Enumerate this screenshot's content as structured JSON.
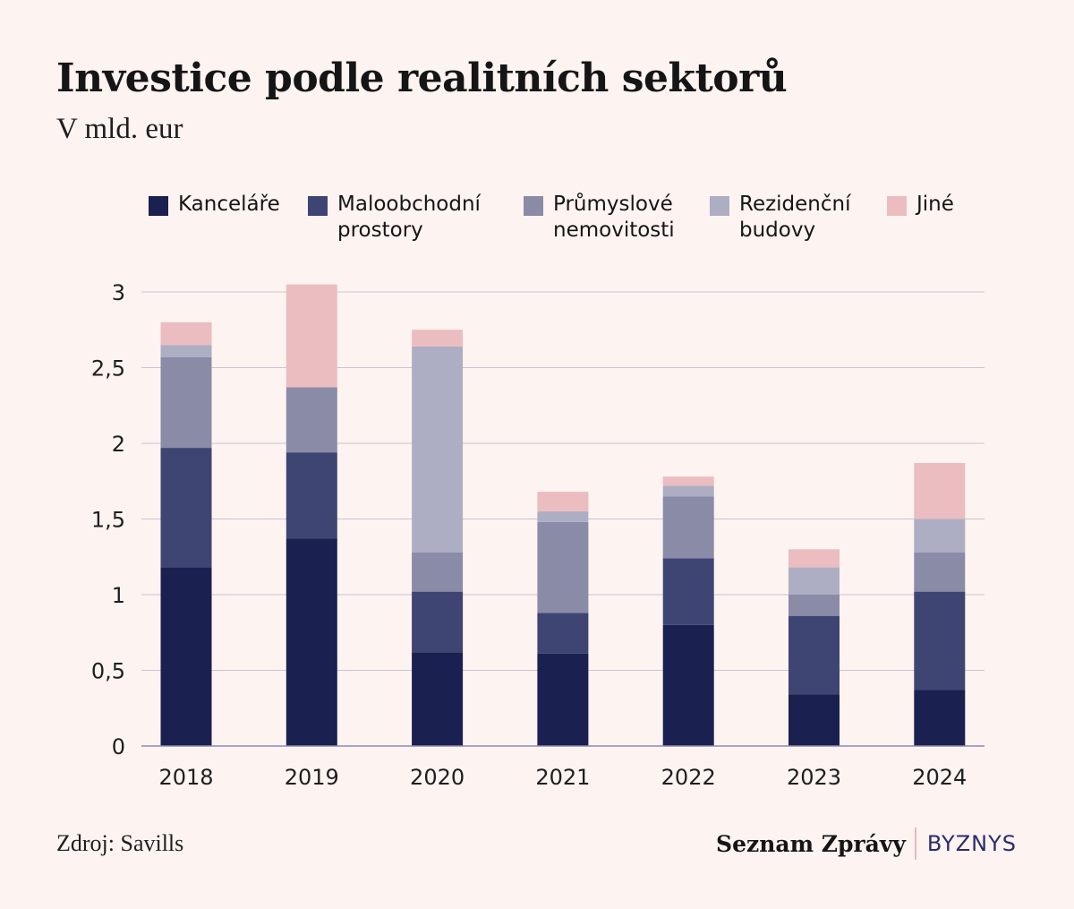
{
  "title": "Investice podle realitních sektorů",
  "subtitle": "V mld. eur",
  "legend": [
    {
      "lines": [
        "Kanceláře"
      ],
      "color": "#1a2150"
    },
    {
      "lines": [
        "Maloobchodní",
        "prostory"
      ],
      "color": "#3f4573"
    },
    {
      "lines": [
        "Průmyslové",
        "nemovitosti"
      ],
      "color": "#8a8ba7"
    },
    {
      "lines": [
        "Rezidenční",
        "budovy"
      ],
      "color": "#adaec3"
    },
    {
      "lines": [
        "Jiné"
      ],
      "color": "#ebbdc0"
    }
  ],
  "chart_data": {
    "type": "bar",
    "stacked": true,
    "categories": [
      "2018",
      "2019",
      "2020",
      "2021",
      "2022",
      "2023",
      "2024"
    ],
    "series": [
      {
        "name": "Kanceláře",
        "color": "#1a2150",
        "values": [
          1.18,
          1.37,
          0.62,
          0.61,
          0.8,
          0.34,
          0.37
        ]
      },
      {
        "name": "Maloobchodní prostory",
        "color": "#3f4573",
        "values": [
          0.79,
          0.57,
          0.4,
          0.27,
          0.44,
          0.52,
          0.65
        ]
      },
      {
        "name": "Průmyslové nemovitosti",
        "color": "#8a8ba7",
        "values": [
          0.6,
          0.43,
          0.26,
          0.6,
          0.41,
          0.14,
          0.26
        ]
      },
      {
        "name": "Rezidenční budovy",
        "color": "#adaec3",
        "values": [
          0.08,
          0.0,
          1.36,
          0.07,
          0.07,
          0.18,
          0.22
        ]
      },
      {
        "name": "Jiné",
        "color": "#ebbdc0",
        "values": [
          0.15,
          0.68,
          0.11,
          0.13,
          0.06,
          0.12,
          0.37
        ]
      }
    ],
    "ylim": [
      0,
      3
    ],
    "yticks": [
      0,
      0.5,
      1,
      1.5,
      2,
      2.5,
      3
    ],
    "ytick_labels": [
      "0",
      "0,5",
      "1",
      "1,5",
      "2",
      "2,5",
      "3"
    ],
    "grid": true,
    "legend_position": "top",
    "gridline_color": "#c9c5d1",
    "axis_color": "#8e89b0"
  },
  "source": "Zdroj: Savills",
  "brand": {
    "name": "Seznam Zprávy",
    "section": "BYZNYS"
  }
}
